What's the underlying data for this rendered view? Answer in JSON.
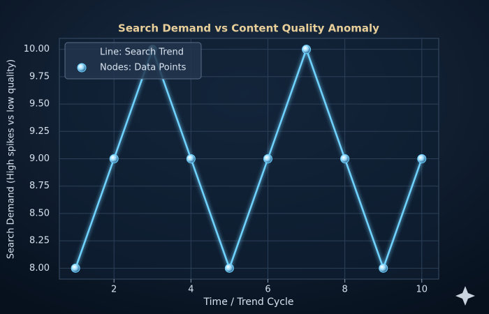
{
  "chart_data": {
    "type": "line",
    "title": "Search Demand vs Content Quality Anomaly",
    "x_label": "Time / Trend Cycle",
    "y_label": "Search Demand (High spikes vs low quality)",
    "x": [
      1,
      2,
      3,
      4,
      5,
      6,
      7,
      8,
      9,
      10
    ],
    "series": [
      {
        "name": "Line: Search Trend",
        "marker_name": "Nodes: Data Points",
        "color": "#6fd3ff",
        "values": [
          8,
          9,
          10,
          9,
          8,
          9,
          10,
          9,
          8,
          9
        ]
      }
    ],
    "xlim": [
      0.58,
      10.44
    ],
    "xticks": [
      2,
      4,
      6,
      8,
      10
    ],
    "ylim": [
      7.9,
      10.1
    ],
    "yticks": [
      {
        "value": 8,
        "label": "8.00"
      },
      {
        "value": 8.25,
        "label": "8.25"
      },
      {
        "value": 8.5,
        "label": "8.50"
      },
      {
        "value": 8.75,
        "label": "8.75"
      },
      {
        "value": 9,
        "label": "9.00"
      },
      {
        "value": 9.25,
        "label": "9.25"
      },
      {
        "value": 9.5,
        "label": "9.50"
      },
      {
        "value": 9.75,
        "label": "9.75"
      },
      {
        "value": 10,
        "label": "10.00"
      }
    ],
    "grid": true,
    "legend": "upper left"
  }
}
